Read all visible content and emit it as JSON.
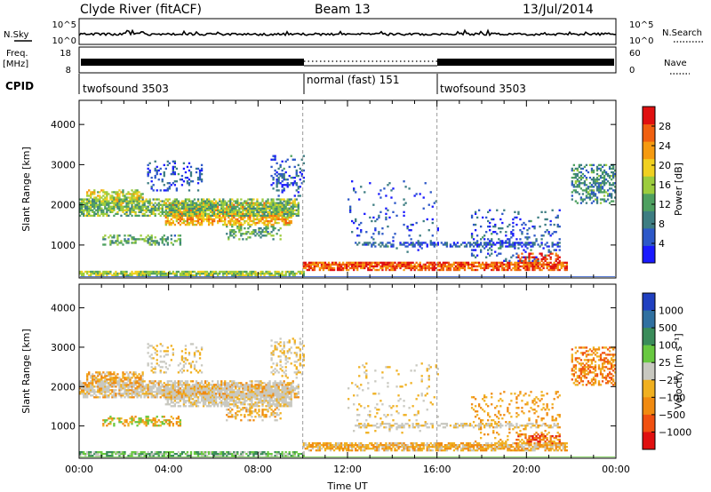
{
  "header": {
    "station": "Clyde River (fitACF)",
    "beam": "Beam 13",
    "date": "13/Jul/2014"
  },
  "noise_panel": {
    "left_label": "N.Sky",
    "right_label": "N.Search",
    "left_ticks": [
      "10^5",
      "10^0"
    ],
    "right_ticks": [
      "10^5",
      "10^0"
    ]
  },
  "freq_panel": {
    "left_label_1": "Freq.",
    "left_label_2": "[MHz]",
    "right_label": "Nave",
    "left_ticks": [
      "18",
      "8"
    ],
    "right_ticks": [
      "60",
      "0"
    ]
  },
  "cpid_panel": {
    "label": "CPID",
    "segments": [
      {
        "text": "twofsound 3503",
        "start_hour": 0,
        "end_hour": 10
      },
      {
        "text": "normal (fast) 151",
        "start_hour": 10,
        "end_hour": 16
      },
      {
        "text": "twofsound 3503",
        "start_hour": 16,
        "end_hour": 24
      }
    ]
  },
  "chart_data": [
    {
      "type": "heatmap",
      "name": "power",
      "ylabel": "Slant Range [km]",
      "ylim": [
        180,
        4600
      ],
      "yticks": [
        "1000",
        "2000",
        "3000",
        "4000"
      ],
      "ytick_values": [
        1000,
        2000,
        3000,
        4000
      ],
      "xlim": [
        0,
        24
      ],
      "colorbar": {
        "label": "Power [dB]",
        "tick_labels": [
          "4",
          "8",
          "12",
          "16",
          "20",
          "24",
          "28"
        ],
        "tick_values": [
          4,
          8,
          12,
          16,
          20,
          24,
          28
        ],
        "range": [
          0,
          32
        ],
        "colors": [
          "#1a1aff",
          "#2d58c8",
          "#3d7d82",
          "#4ea060",
          "#9ccc3d",
          "#f0d020",
          "#f59a10",
          "#f06010",
          "#e01010"
        ]
      }
    },
    {
      "type": "heatmap",
      "name": "velocity",
      "ylabel": "Slant Range [km]",
      "ylim": [
        180,
        4600
      ],
      "yticks": [
        "1000",
        "2000",
        "3000",
        "4000"
      ],
      "ytick_values": [
        1000,
        2000,
        3000,
        4000
      ],
      "xlim": [
        0,
        24
      ],
      "xlabel": "Time UT",
      "xticks": [
        "00:00",
        "04:00",
        "08:00",
        "12:00",
        "16:00",
        "20:00",
        "00:00"
      ],
      "xtick_values": [
        0,
        4,
        8,
        12,
        16,
        20,
        24
      ],
      "colorbar": {
        "label": "Velocity [m s⁻¹]",
        "tick_labels": [
          "1000",
          "500",
          "100",
          "25",
          "−25",
          "−100",
          "−500",
          "−1000"
        ],
        "colors": [
          "#2040c0",
          "#3070a0",
          "#3a8c5a",
          "#68c840",
          "#c8c8c0",
          "#f0b020",
          "#f08a10",
          "#f05010",
          "#e01010"
        ]
      }
    }
  ]
}
